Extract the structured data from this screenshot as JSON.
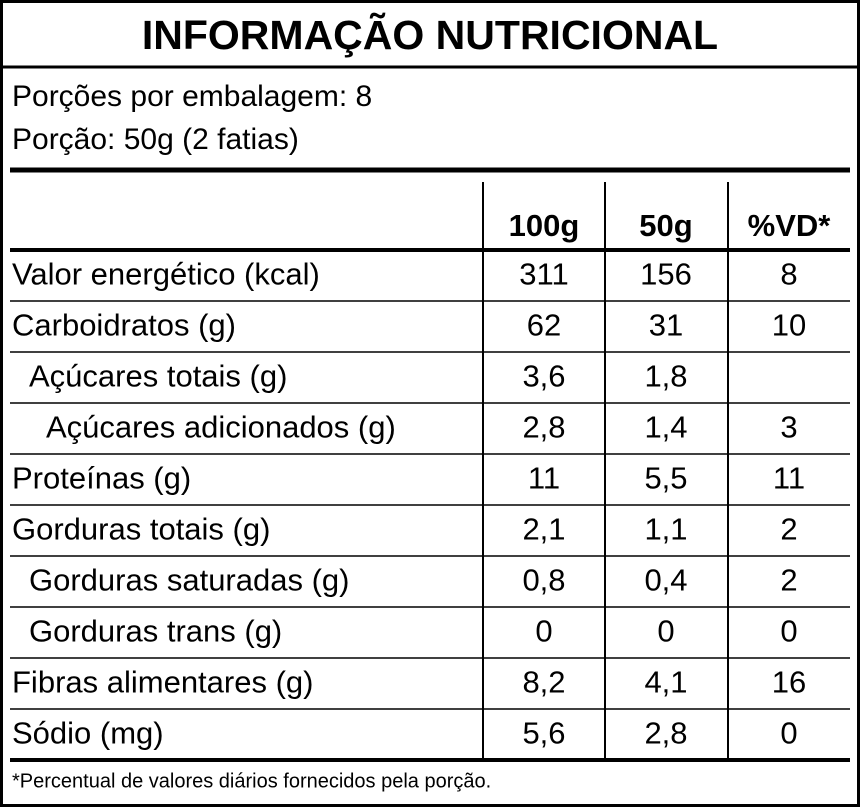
{
  "title": "INFORMAÇÃO NUTRICIONAL",
  "servings": [
    "Porções por embalagem: 8",
    "Porção: 50g (2 fatias)"
  ],
  "table": {
    "header": [
      "100g",
      "50g",
      "%VD*"
    ],
    "rows": [
      [
        "Valor energético (kcal)",
        "311",
        "156",
        "8"
      ],
      [
        "Carboidratos (g)",
        "62",
        "31",
        "10"
      ],
      [
        "Açúcares totais (g)",
        "3,6",
        "1,8",
        null
      ],
      [
        "Açúcares adicionados (g)",
        "2,8",
        "1,4",
        "3"
      ],
      [
        "Proteínas (g)",
        "11",
        "5,5",
        "11"
      ],
      [
        "Gorduras totais (g)",
        "2,1",
        "1,1",
        "2"
      ],
      [
        "Gorduras saturadas (g)",
        "0,8",
        "0,4",
        "2"
      ],
      [
        "Gorduras trans (g)",
        "0",
        "0",
        "0"
      ],
      [
        "Fibras alimentares (g)",
        "8,2",
        "4,1",
        "16"
      ],
      [
        "Sódio (mg)",
        "5,6",
        "2,8",
        "0"
      ]
    ]
  },
  "footnote": "*Percentual de valores diários fornecidos pela porção."
}
